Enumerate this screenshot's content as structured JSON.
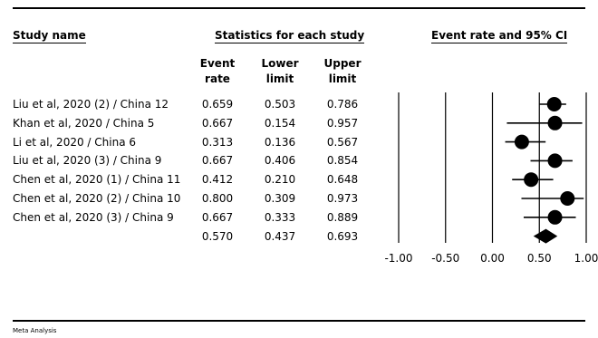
{
  "headers": {
    "study_name": "Study name",
    "statistics": "Statistics for each study",
    "event_rate_ci": "Event rate and 95% CI",
    "col_event": [
      "Event",
      "rate"
    ],
    "col_lower": [
      "Lower",
      "limit"
    ],
    "col_upper": [
      "Upper",
      "limit"
    ]
  },
  "footer": "Meta Analysis",
  "chart_data": {
    "type": "forest",
    "xlim": [
      -1.0,
      1.0
    ],
    "x_ticks": [
      "-1.00",
      "-0.50",
      "0.00",
      "0.50",
      "1.00"
    ],
    "x_tick_values": [
      -1.0,
      -0.5,
      0.0,
      0.5,
      1.0
    ],
    "studies": [
      {
        "name": "Liu et al, 2020 (2) / China 12",
        "event_rate": "0.659",
        "lower": "0.503",
        "upper": "0.786",
        "v": 0.659,
        "lo": 0.503,
        "hi": 0.786
      },
      {
        "name": "Khan et al, 2020 / China 5",
        "event_rate": "0.667",
        "lower": "0.154",
        "upper": "0.957",
        "v": 0.667,
        "lo": 0.154,
        "hi": 0.957
      },
      {
        "name": "Li et al, 2020 / China 6",
        "event_rate": "0.313",
        "lower": "0.136",
        "upper": "0.567",
        "v": 0.313,
        "lo": 0.136,
        "hi": 0.567
      },
      {
        "name": "Liu et al, 2020 (3) / China 9",
        "event_rate": "0.667",
        "lower": "0.406",
        "upper": "0.854",
        "v": 0.667,
        "lo": 0.406,
        "hi": 0.854
      },
      {
        "name": "Chen et al, 2020 (1) / China 11",
        "event_rate": "0.412",
        "lower": "0.210",
        "upper": "0.648",
        "v": 0.412,
        "lo": 0.21,
        "hi": 0.648
      },
      {
        "name": "Chen et al, 2020 (2) / China 10",
        "event_rate": "0.800",
        "lower": "0.309",
        "upper": "0.973",
        "v": 0.8,
        "lo": 0.309,
        "hi": 0.973
      },
      {
        "name": "Chen et al, 2020 (3) / China 9",
        "event_rate": "0.667",
        "lower": "0.333",
        "upper": "0.889",
        "v": 0.667,
        "lo": 0.333,
        "hi": 0.889
      }
    ],
    "summary": {
      "event_rate": "0.570",
      "lower": "0.437",
      "upper": "0.693",
      "v": 0.57,
      "lo": 0.437,
      "hi": 0.693
    }
  }
}
